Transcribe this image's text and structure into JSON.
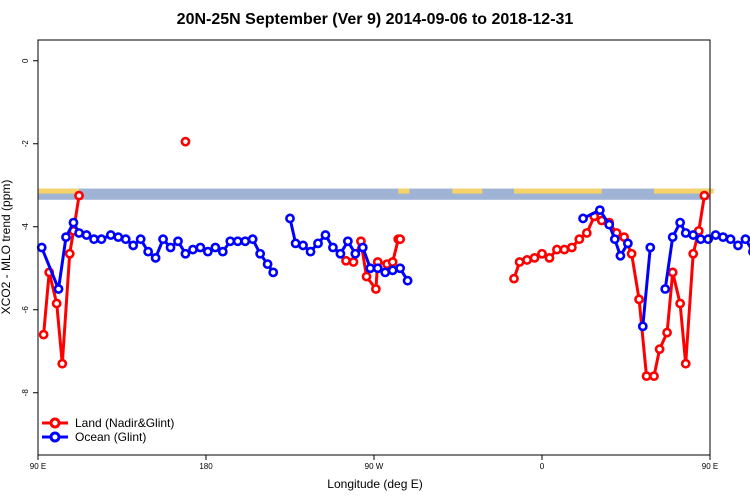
{
  "chart_data": {
    "type": "line",
    "title": "20N-25N September (Ver 9)   2014-09-06 to 2018-12-31",
    "xlabel": "Longitude (deg E)",
    "ylabel": "XCO2 - MLO trend (ppm)",
    "xlim": [
      90,
      450
    ],
    "ylim": [
      -9.5,
      0.5
    ],
    "x_ticks": [
      {
        "value": 90,
        "label": "90 E"
      },
      {
        "value": 180,
        "label": "180"
      },
      {
        "value": 270,
        "label": "90 W"
      },
      {
        "value": 360,
        "label": "0"
      },
      {
        "value": 450,
        "label": "90 E"
      },
      {
        "value": 540,
        "label": "180"
      }
    ],
    "y_ticks": [
      {
        "value": 0,
        "label": "0"
      },
      {
        "value": -2,
        "label": "-2"
      },
      {
        "value": -4,
        "label": "-4"
      },
      {
        "value": -6,
        "label": "-6"
      },
      {
        "value": -8,
        "label": "-8"
      }
    ],
    "legend_position": "bottom-left",
    "map_strip": {
      "y_top": -3.08,
      "y_bottom": -3.35,
      "ocean_color": "#9fb4d4",
      "land_color": "#f6d36a"
    },
    "series": [
      {
        "name": "Land (Nadir&Glint)",
        "color": "#ff0000",
        "points": [
          [
            93,
            -6.6
          ],
          [
            96,
            -5.1
          ],
          [
            100,
            -5.85
          ],
          [
            103,
            -7.3
          ],
          [
            107,
            -4.65
          ],
          [
            109,
            -4.1
          ],
          [
            112,
            -3.25
          ],
          [
            null,
            null
          ],
          [
            169,
            -1.95
          ],
          [
            null,
            null
          ],
          [
            255,
            -4.82
          ],
          [
            259,
            -4.85
          ],
          [
            263,
            -4.35
          ],
          [
            266,
            -5.2
          ],
          [
            271,
            -5.5
          ],
          [
            272,
            -4.85
          ],
          [
            277,
            -4.9
          ],
          [
            280,
            -4.85
          ],
          [
            283,
            -4.3
          ],
          [
            284,
            -4.3
          ],
          [
            null,
            null
          ],
          [
            345,
            -5.25
          ],
          [
            348,
            -4.85
          ],
          [
            352,
            -4.8
          ],
          [
            356,
            -4.75
          ],
          [
            360,
            -4.65
          ],
          [
            364,
            -4.75
          ],
          [
            368,
            -4.55
          ],
          [
            372,
            -4.55
          ],
          [
            376,
            -4.5
          ],
          [
            380,
            -4.3
          ],
          [
            384,
            -4.15
          ],
          [
            388,
            -3.75
          ],
          [
            392,
            -3.85
          ],
          [
            396,
            -3.9
          ],
          [
            400,
            -4.15
          ],
          [
            404,
            -4.25
          ],
          [
            408,
            -4.65
          ],
          [
            412,
            -5.75
          ],
          [
            416,
            -7.6
          ],
          [
            420,
            -7.6
          ],
          [
            423,
            -6.95
          ],
          [
            427,
            -6.55
          ],
          [
            430,
            -5.1
          ],
          [
            434,
            -5.85
          ],
          [
            437,
            -7.3
          ],
          [
            441,
            -4.65
          ],
          [
            444,
            -4.1
          ],
          [
            447,
            -3.25
          ]
        ]
      },
      {
        "name": "Ocean (Glint)",
        "color": "#0000ff",
        "points": [
          [
            92,
            -4.5
          ],
          [
            101,
            -5.5
          ],
          [
            105,
            -4.25
          ],
          [
            109,
            -3.9
          ],
          [
            112,
            -4.15
          ],
          [
            116,
            -4.2
          ],
          [
            120,
            -4.3
          ],
          [
            124,
            -4.3
          ],
          [
            129,
            -4.2
          ],
          [
            133,
            -4.25
          ],
          [
            137,
            -4.3
          ],
          [
            141,
            -4.45
          ],
          [
            145,
            -4.3
          ],
          [
            149,
            -4.6
          ],
          [
            153,
            -4.75
          ],
          [
            157,
            -4.3
          ],
          [
            161,
            -4.5
          ],
          [
            165,
            -4.35
          ],
          [
            169,
            -4.65
          ],
          [
            173,
            -4.55
          ],
          [
            177,
            -4.5
          ],
          [
            181,
            -4.6
          ],
          [
            185,
            -4.5
          ],
          [
            189,
            -4.6
          ],
          [
            193,
            -4.35
          ],
          [
            197,
            -4.35
          ],
          [
            201,
            -4.35
          ],
          [
            205,
            -4.3
          ],
          [
            209,
            -4.65
          ],
          [
            213,
            -4.9
          ],
          [
            216,
            -5.1
          ],
          [
            null,
            null
          ],
          [
            225,
            -3.8
          ],
          [
            228,
            -4.4
          ],
          [
            232,
            -4.45
          ],
          [
            236,
            -4.6
          ],
          [
            240,
            -4.4
          ],
          [
            244,
            -4.2
          ],
          [
            248,
            -4.5
          ],
          [
            252,
            -4.65
          ],
          [
            256,
            -4.35
          ],
          [
            260,
            -4.65
          ],
          [
            264,
            -4.5
          ],
          [
            268,
            -5.0
          ],
          [
            272,
            -5.0
          ],
          [
            276,
            -5.1
          ],
          [
            280,
            -5.05
          ],
          [
            284,
            -5.0
          ],
          [
            288,
            -5.3
          ],
          [
            null,
            null
          ],
          [
            382,
            -3.8
          ],
          [
            391,
            -3.6
          ],
          [
            396,
            -3.95
          ],
          [
            399,
            -4.3
          ],
          [
            402,
            -4.7
          ],
          [
            406,
            -4.4
          ],
          [
            null,
            null
          ],
          [
            414,
            -6.4
          ],
          [
            418,
            -4.5
          ],
          [
            null,
            null
          ],
          [
            426,
            -5.5
          ],
          [
            430,
            -4.25
          ],
          [
            434,
            -3.9
          ],
          [
            437,
            -4.15
          ],
          [
            441,
            -4.2
          ],
          [
            445,
            -4.3
          ],
          [
            449,
            -4.3
          ],
          [
            453,
            -4.2
          ],
          [
            457,
            -4.25
          ],
          [
            461,
            -4.3
          ],
          [
            465,
            -4.45
          ],
          [
            469,
            -4.3
          ],
          [
            473,
            -4.6
          ],
          [
            477,
            -4.75
          ],
          [
            481,
            -4.3
          ]
        ]
      }
    ]
  }
}
